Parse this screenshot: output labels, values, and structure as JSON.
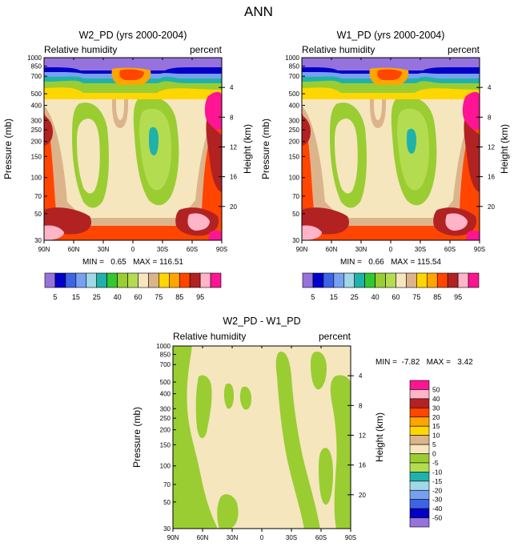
{
  "main_title": "ANN",
  "chart_data": [
    {
      "type": "heatmap",
      "id": "w2",
      "title": "W2_PD (yrs 2000-2004)",
      "left_string": "Relative humidity",
      "right_string": "percent",
      "ylabel": "Pressure (mb)",
      "ylabel_right": "Height (km)",
      "x_tick_labels": [
        "90N",
        "60N",
        "30N",
        "0",
        "30S",
        "60S",
        "90S"
      ],
      "y_tick_labels": [
        "1000",
        "850",
        "700",
        "500",
        "400",
        "300",
        "250",
        "200",
        "150",
        "100",
        "70",
        "50",
        "30"
      ],
      "y_tick_values": [
        1000,
        850,
        700,
        500,
        400,
        300,
        250,
        200,
        150,
        100,
        70,
        50,
        30
      ],
      "height_km_labels": [
        "20",
        "16",
        "12",
        "8",
        "4"
      ],
      "height_km_values": [
        20,
        16,
        12,
        8,
        4
      ],
      "xlim": [
        -90,
        90
      ],
      "ylim_mb": [
        1000,
        30
      ],
      "stats": "MIN =   0.65   MAX = 116.51",
      "colorbar": {
        "orientation": "horizontal",
        "levels": [
          5,
          10,
          15,
          20,
          25,
          30,
          40,
          50,
          60,
          70,
          75,
          80,
          85,
          90,
          95
        ],
        "labels": [
          "5",
          "15",
          "25",
          "40",
          "60",
          "75",
          "85",
          "95"
        ],
        "colors": [
          "#9673dc",
          "#0000c8",
          "#3c64e6",
          "#78a0f0",
          "#a0d8e6",
          "#20b2aa",
          "#32c832",
          "#9acd32",
          "#b4dc50",
          "#f5e6be",
          "#dcb48c",
          "#ffd700",
          "#ffa500",
          "#ff4500",
          "#b22222",
          "#ffb4c8",
          "#ff1493"
        ]
      }
    },
    {
      "type": "heatmap",
      "id": "w1",
      "title": "W1_PD (yrs 2000-2004)",
      "left_string": "Relative humidity",
      "right_string": "percent",
      "ylabel": "Pressure (mb)",
      "ylabel_right": "Height (km)",
      "x_tick_labels": [
        "90N",
        "60N",
        "30N",
        "0",
        "30S",
        "60S",
        "90S"
      ],
      "y_tick_labels": [
        "1000",
        "850",
        "700",
        "500",
        "400",
        "300",
        "250",
        "200",
        "150",
        "100",
        "70",
        "50",
        "30"
      ],
      "y_tick_values": [
        1000,
        850,
        700,
        500,
        400,
        300,
        250,
        200,
        150,
        100,
        70,
        50,
        30
      ],
      "height_km_labels": [
        "20",
        "16",
        "12",
        "8",
        "4"
      ],
      "height_km_values": [
        20,
        16,
        12,
        8,
        4
      ],
      "xlim": [
        -90,
        90
      ],
      "ylim_mb": [
        1000,
        30
      ],
      "stats": "MIN =   0.66   MAX = 115.54",
      "colorbar": {
        "orientation": "horizontal",
        "levels": [
          5,
          10,
          15,
          20,
          25,
          30,
          40,
          50,
          60,
          70,
          75,
          80,
          85,
          90,
          95
        ],
        "labels": [
          "5",
          "15",
          "25",
          "40",
          "60",
          "75",
          "85",
          "95"
        ],
        "colors": [
          "#9673dc",
          "#0000c8",
          "#3c64e6",
          "#78a0f0",
          "#a0d8e6",
          "#20b2aa",
          "#32c832",
          "#9acd32",
          "#b4dc50",
          "#f5e6be",
          "#dcb48c",
          "#ffd700",
          "#ffa500",
          "#ff4500",
          "#b22222",
          "#ffb4c8",
          "#ff1493"
        ]
      }
    },
    {
      "type": "heatmap",
      "id": "diff",
      "title": "W2_PD - W1_PD",
      "left_string": "Relative humidity",
      "right_string": "percent",
      "ylabel": "Pressure (mb)",
      "ylabel_right": "Height (km)",
      "x_tick_labels": [
        "90N",
        "60N",
        "30N",
        "0",
        "30S",
        "60S",
        "90S"
      ],
      "y_tick_labels": [
        "1000",
        "850",
        "700",
        "500",
        "400",
        "300",
        "250",
        "200",
        "150",
        "100",
        "70",
        "50",
        "30"
      ],
      "y_tick_values": [
        1000,
        850,
        700,
        500,
        400,
        300,
        250,
        200,
        150,
        100,
        70,
        50,
        30
      ],
      "height_km_labels": [
        "20",
        "16",
        "12",
        "8",
        "4"
      ],
      "height_km_values": [
        20,
        16,
        12,
        8,
        4
      ],
      "xlim": [
        -90,
        90
      ],
      "ylim_mb": [
        1000,
        30
      ],
      "stats": "MIN =  -7.82   MAX =   3.42",
      "colorbar": {
        "orientation": "vertical",
        "labels": [
          "50",
          "40",
          "30",
          "20",
          "15",
          "10",
          "5",
          "0",
          "-5",
          "-10",
          "-15",
          "-20",
          "-30",
          "-40",
          "-50"
        ],
        "colors": [
          "#ff1493",
          "#ffb4c8",
          "#b22222",
          "#ff4500",
          "#ffa500",
          "#ffd700",
          "#dcb48c",
          "#f5e6be",
          "#9acd32",
          "#b4dc50",
          "#20b2aa",
          "#a0d8e6",
          "#78a0f0",
          "#3c64e6",
          "#0000c8",
          "#9673dc"
        ]
      }
    }
  ]
}
